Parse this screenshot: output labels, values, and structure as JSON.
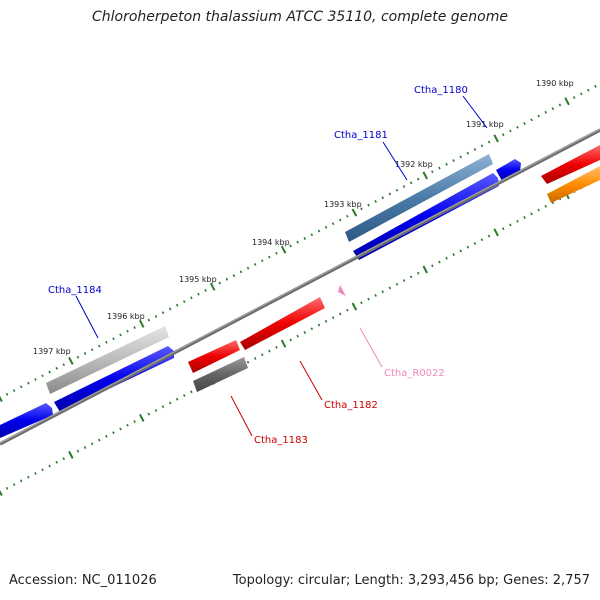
{
  "title": "Chloroherpeton thalassium ATCC 35110, complete genome",
  "footer": {
    "accession": "Accession: NC_011026",
    "summary": "Topology: circular; Length: 3,293,456 bp; Genes: 2,757"
  },
  "map": {
    "kbp_ticks": [
      {
        "kb": 1390,
        "label": "1390 kbp"
      },
      {
        "kb": 1391,
        "label": "1391 kbp"
      },
      {
        "kb": 1392,
        "label": "1392 kbp"
      },
      {
        "kb": 1393,
        "label": "1393 kbp"
      },
      {
        "kb": 1394,
        "label": "1394 kbp"
      },
      {
        "kb": 1395,
        "label": "1395 kbp"
      },
      {
        "kb": 1396,
        "label": "1396 kbp"
      },
      {
        "kb": 1397,
        "label": "1397 kbp"
      }
    ],
    "gene_labels": [
      {
        "name": "Ctha_1180",
        "color": "#0000cc"
      },
      {
        "name": "Ctha_1181",
        "color": "#0000cc"
      },
      {
        "name": "Ctha_1184",
        "color": "#0000cc"
      },
      {
        "name": "Ctha_R0022",
        "color": "#ee88bb"
      },
      {
        "name": "Ctha_1182",
        "color": "#cc0000"
      },
      {
        "name": "Ctha_1183",
        "color": "#cc0000"
      }
    ]
  },
  "colors": {
    "backbone": "#808080",
    "cds_forward": "#0000ee",
    "cds_reverse": "#ee0000",
    "ticks": "#2a7a2a",
    "steelblue": "#4a7aa8",
    "silver": "#bbbbbb",
    "darkgray": "#666666",
    "orange": "#ff8c00",
    "rna": "#ee88bb"
  }
}
